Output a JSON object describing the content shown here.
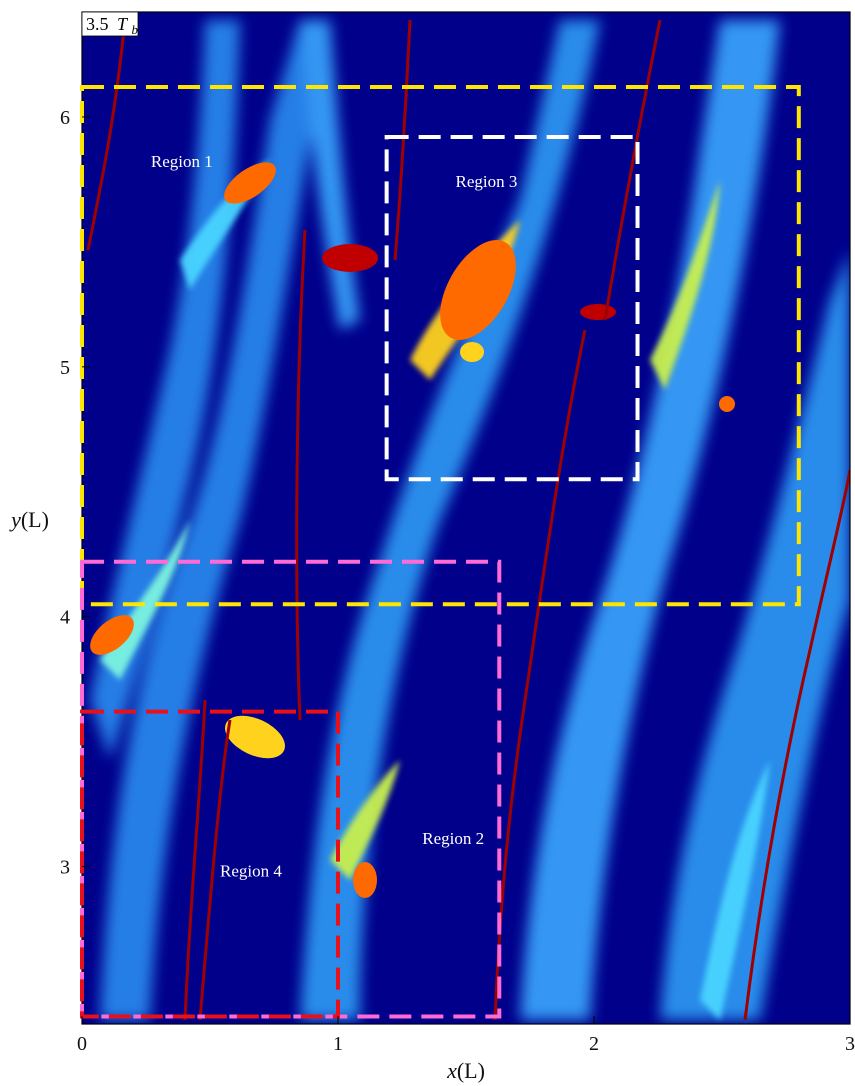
{
  "chart_data": {
    "type": "heatmap",
    "title": "",
    "time_stamp": {
      "value": "3.5",
      "symbol": "T",
      "subscript": "b"
    },
    "xlabel": {
      "symbol": "x",
      "unit": "(L)"
    },
    "ylabel": {
      "symbol": "y",
      "unit": "(L)"
    },
    "xlim": [
      0,
      3
    ],
    "ylim": [
      2.37,
      6.42
    ],
    "x_ticks": [
      "0",
      "1",
      "2",
      "3"
    ],
    "y_ticks": [
      "3",
      "4",
      "5",
      "6"
    ],
    "colormap": [
      "#00008b",
      "#0a3cff",
      "#1e90ff",
      "#4ad4ff",
      "#7cf3e0",
      "#c8f050",
      "#ffd21e",
      "#ff6a00",
      "#c00000",
      "#7a0000"
    ],
    "regions": [
      {
        "label": "Region 1",
        "color": "#ffe600",
        "x": [
          0.0,
          2.8
        ],
        "y": [
          4.05,
          6.12
        ],
        "label_at": [
          0.39,
          5.8
        ]
      },
      {
        "label": "Region 2",
        "color": "#ff6ad5",
        "x": [
          0.0,
          1.63
        ],
        "y": [
          2.4,
          4.22
        ],
        "label_at": [
          1.45,
          3.09
        ]
      },
      {
        "label": "Region 3",
        "color": "#ffffff",
        "x": [
          1.19,
          2.17
        ],
        "y": [
          4.55,
          5.92
        ],
        "label_at": [
          1.58,
          5.72
        ]
      },
      {
        "label": "Region 4",
        "color": "#e8101a",
        "x": [
          0.0,
          1.0
        ],
        "y": [
          2.4,
          3.62
        ],
        "label_at": [
          0.66,
          2.96
        ]
      }
    ]
  }
}
